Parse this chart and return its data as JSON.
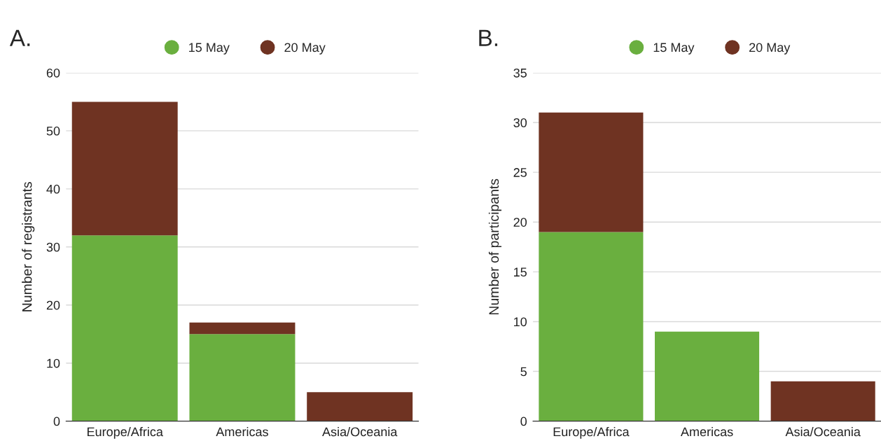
{
  "chart_data": [
    {
      "type": "bar",
      "title": "A.",
      "ylabel": "Number of registrants",
      "categories": [
        "Europe/Africa",
        "Americas",
        "Asia/Oceania"
      ],
      "stacked": true,
      "ylim": [
        0,
        60
      ],
      "yticks": [
        0,
        10,
        20,
        30,
        40,
        50,
        60
      ],
      "grid": "y",
      "legend": "top",
      "series": [
        {
          "name": "15 May",
          "color": "#6aaf3f",
          "values": [
            32,
            15,
            0
          ]
        },
        {
          "name": "20 May",
          "color": "#6f3322",
          "values": [
            23,
            2,
            5
          ]
        }
      ]
    },
    {
      "type": "bar",
      "title": "B.",
      "ylabel": "Number of participants",
      "categories": [
        "Europe/Africa",
        "Americas",
        "Asia/Oceania"
      ],
      "stacked": true,
      "ylim": [
        0,
        35
      ],
      "yticks": [
        0,
        5,
        10,
        15,
        20,
        25,
        30,
        35
      ],
      "grid": "y",
      "legend": "top",
      "series": [
        {
          "name": "15 May",
          "color": "#6aaf3f",
          "values": [
            19,
            9,
            0
          ]
        },
        {
          "name": "20 May",
          "color": "#6f3322",
          "values": [
            12,
            0,
            4
          ]
        }
      ]
    }
  ]
}
